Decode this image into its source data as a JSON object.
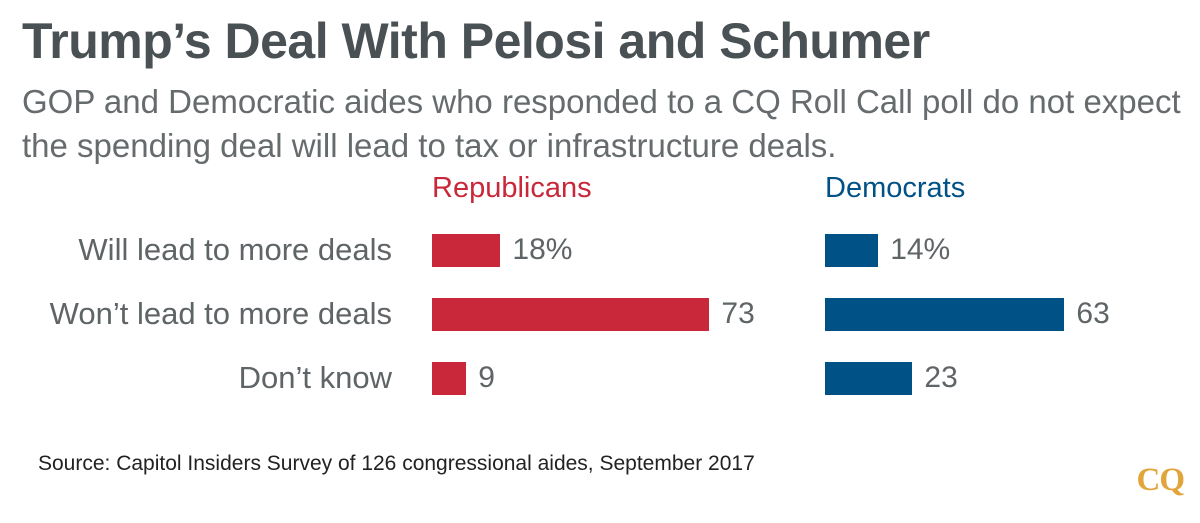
{
  "header": {
    "title": "Trump’s Deal With Pelosi and Schumer",
    "subtitle": "GOP and Democratic aides who responded to a CQ Roll Call poll do not expect the spending deal will lead to tax or infrastructure deals."
  },
  "chart_data": {
    "type": "bar",
    "orientation": "horizontal",
    "title": "Trump’s Deal With Pelosi and Schumer",
    "categories": [
      "Will lead to more deals",
      "Won’t lead to more deals",
      "Don’t know"
    ],
    "series": [
      {
        "name": "Republicans",
        "color": "#c8283a",
        "values": [
          18,
          73,
          9
        ],
        "labels": [
          "18%",
          "73",
          "9"
        ]
      },
      {
        "name": "Democrats",
        "color": "#005286",
        "values": [
          14,
          63,
          23
        ],
        "labels": [
          "14%",
          "63",
          "23"
        ]
      }
    ],
    "xlim": [
      0,
      100
    ],
    "legend": "top",
    "grid": false
  },
  "footer": {
    "source": "Source: Capitol Insiders Survey of 126 congressional aides, September 2017",
    "logo": "CQ"
  },
  "colors": {
    "title": "#4a5154",
    "text": "#5f6467",
    "logo": "#e2a53c"
  }
}
